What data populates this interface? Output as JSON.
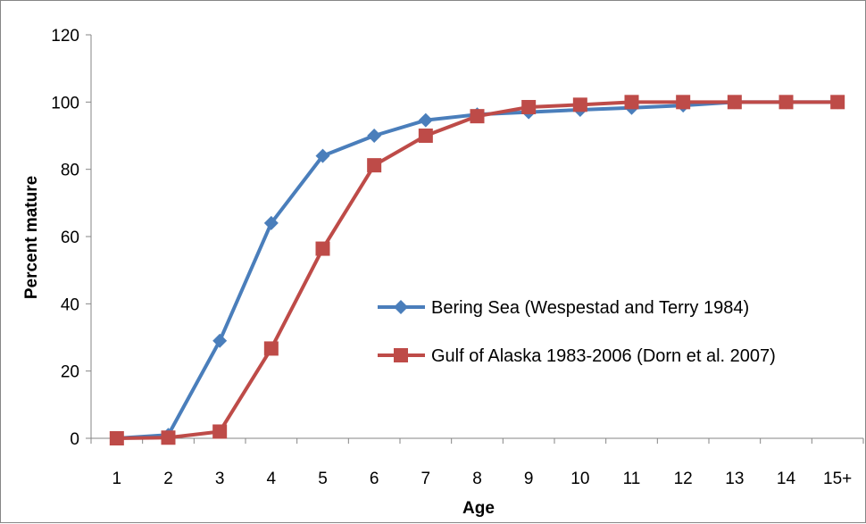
{
  "chart_data": {
    "type": "line",
    "title": "",
    "xlabel": "Age",
    "ylabel": "Percent mature",
    "categories": [
      "1",
      "2",
      "3",
      "4",
      "5",
      "6",
      "7",
      "8",
      "9",
      "10",
      "11",
      "12",
      "13",
      "14",
      "15+"
    ],
    "ylim": [
      0,
      120
    ],
    "yticks": [
      0,
      20,
      40,
      60,
      80,
      100,
      120
    ],
    "grid": false,
    "legend_position": "inside-right",
    "series": [
      {
        "name": "Bering Sea (Wespestad and Terry 1984)",
        "marker": "diamond",
        "color": "#4A7EBB",
        "values": [
          0,
          1,
          29,
          64,
          84,
          90,
          94.6,
          96.3,
          97,
          97.7,
          98.3,
          99,
          100,
          100,
          100
        ]
      },
      {
        "name": "Gulf of Alaska 1983-2006 (Dorn et al. 2007)",
        "marker": "square",
        "color": "#BE4B48",
        "values": [
          0,
          0.2,
          2,
          26.7,
          56.4,
          81.2,
          90,
          95.8,
          98.5,
          99.2,
          100,
          100,
          100,
          100,
          100
        ]
      }
    ]
  }
}
